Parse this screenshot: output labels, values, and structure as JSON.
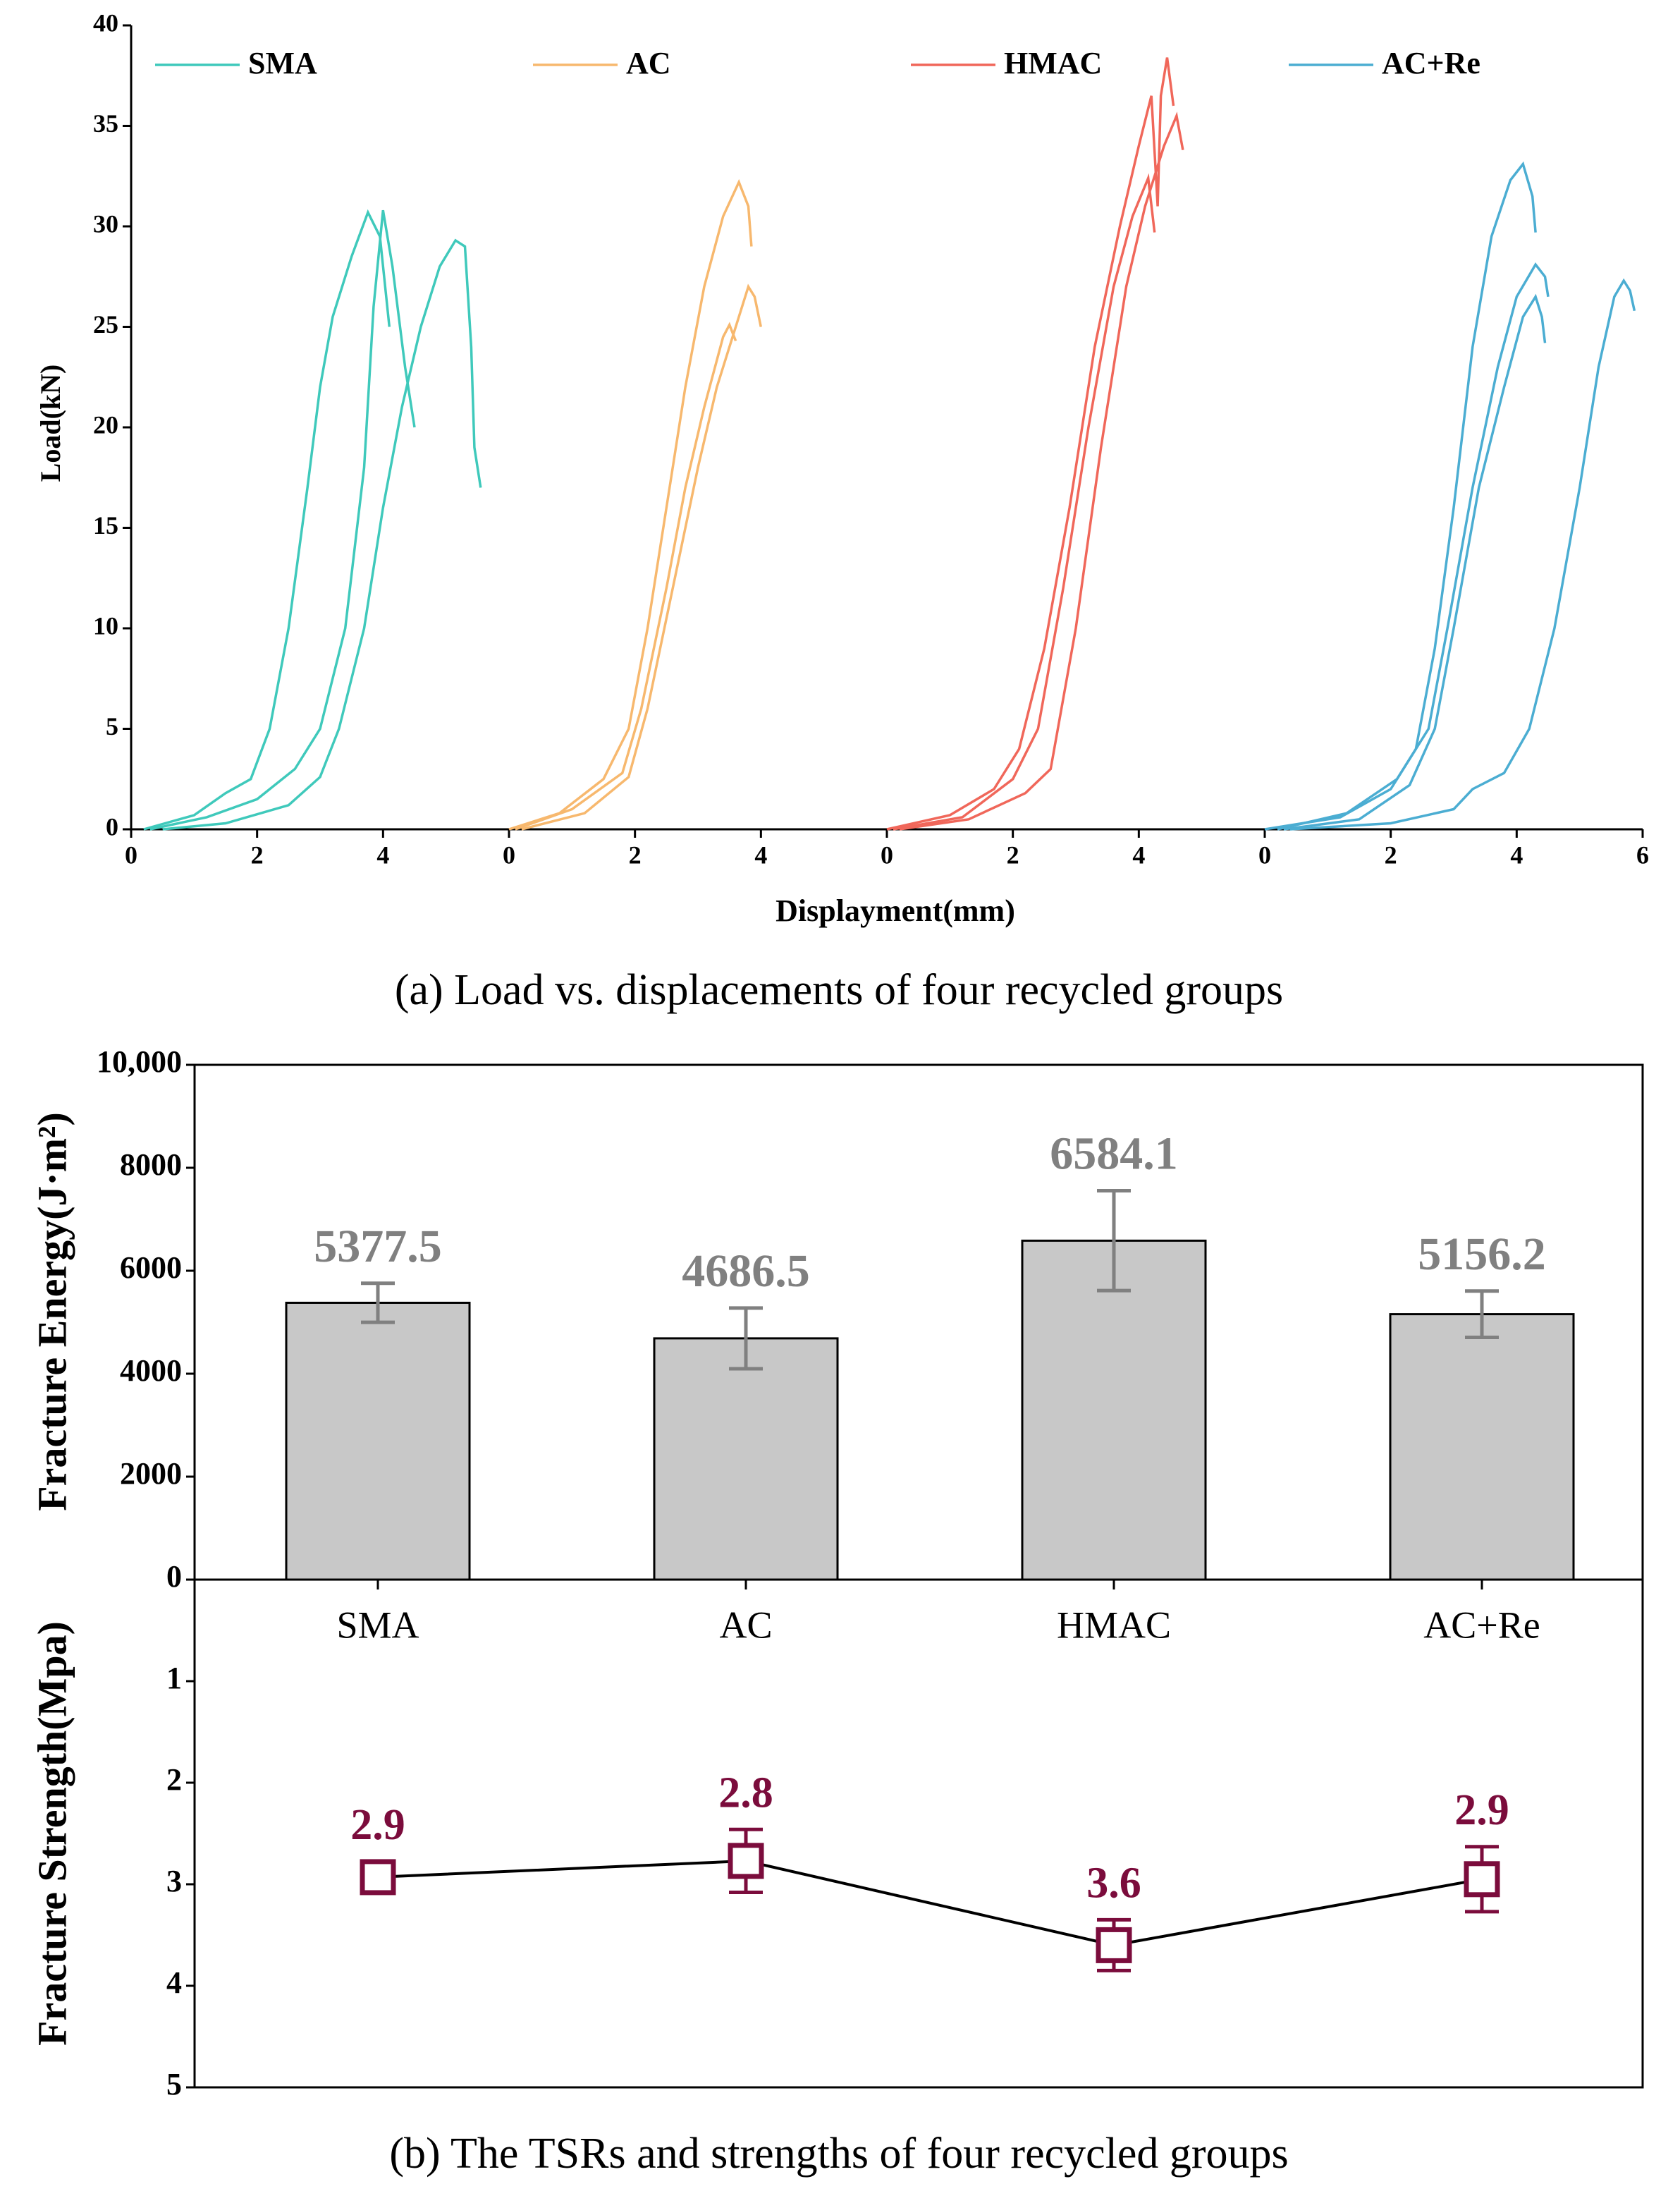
{
  "chart_data": [
    {
      "type": "line",
      "ylabel": "Load(kN)",
      "xlabel": "Displayment(mm)",
      "caption": "(a) Load vs. displacements of four recycled groups",
      "ylim": [
        0,
        40
      ],
      "yticks": [
        0,
        5,
        10,
        15,
        20,
        25,
        30,
        35,
        40
      ],
      "panels": [
        {
          "name": "SMA",
          "color": "#3fc9bb",
          "xlim": [
            0,
            6
          ],
          "xticks": [
            0,
            2,
            4
          ],
          "curves": [
            {
              "x": [
                0.2,
                1,
                1.5,
                1.9,
                2.2,
                2.5,
                2.8,
                3.0,
                3.2,
                3.5,
                3.76,
                3.95,
                4.1
              ],
              "y": [
                0,
                0.7,
                1.8,
                2.5,
                5,
                10,
                17,
                22,
                25.5,
                28.5,
                30.7,
                29.5,
                25
              ]
            },
            {
              "x": [
                0.3,
                1.2,
                2,
                2.6,
                3.0,
                3.4,
                3.7,
                3.85,
                4.0,
                4.15,
                4.35,
                4.5
              ],
              "y": [
                0,
                0.6,
                1.5,
                3,
                5,
                10,
                18,
                26,
                30.8,
                28,
                23,
                20
              ]
            },
            {
              "x": [
                0.5,
                1.5,
                2.5,
                3.0,
                3.3,
                3.7,
                4.0,
                4.3,
                4.6,
                4.9,
                5.15,
                5.3,
                5.4,
                5.45,
                5.55
              ],
              "y": [
                0,
                0.3,
                1.2,
                2.6,
                5,
                10,
                16,
                21,
                25,
                28,
                29.3,
                29,
                24,
                19,
                17
              ]
            }
          ]
        },
        {
          "name": "AC",
          "color": "#f7b86e",
          "xlim": [
            0,
            6
          ],
          "xticks": [
            0,
            2,
            4
          ],
          "curves": [
            {
              "x": [
                0,
                0.8,
                1.5,
                1.9,
                2.2,
                2.5,
                2.8,
                3.1,
                3.4,
                3.65,
                3.8,
                3.85
              ],
              "y": [
                0,
                0.8,
                2.5,
                5,
                10,
                16,
                22,
                27,
                30.5,
                32.2,
                31,
                29
              ]
            },
            {
              "x": [
                0.1,
                1,
                1.8,
                2.1,
                2.5,
                2.8,
                3.1,
                3.4,
                3.5,
                3.6
              ],
              "y": [
                0,
                1,
                2.8,
                6,
                12,
                17,
                21,
                24.5,
                25.1,
                24.3
              ]
            },
            {
              "x": [
                0.2,
                1.2,
                1.9,
                2.2,
                2.6,
                3.0,
                3.3,
                3.6,
                3.8,
                3.9,
                4.0
              ],
              "y": [
                0,
                0.8,
                2.6,
                6,
                12,
                18,
                22,
                25,
                27,
                26.5,
                25
              ]
            }
          ]
        },
        {
          "name": "HMAC",
          "color": "#f0675a",
          "xlim": [
            0,
            6
          ],
          "xticks": [
            0,
            2,
            4
          ],
          "curves": [
            {
              "x": [
                0,
                1,
                1.7,
                2.1,
                2.5,
                2.9,
                3.3,
                3.7,
                4.0,
                4.2,
                4.3,
                4.35,
                4.45,
                4.55
              ],
              "y": [
                0,
                0.7,
                2,
                4,
                9,
                16,
                24,
                30,
                34,
                36.5,
                31,
                36.5,
                38.4,
                36
              ]
            },
            {
              "x": [
                0.1,
                1.2,
                2,
                2.4,
                2.8,
                3.2,
                3.6,
                3.9,
                4.15,
                4.25
              ],
              "y": [
                0,
                0.6,
                2.5,
                5,
                12,
                20,
                27,
                30.5,
                32.4,
                29.7
              ]
            },
            {
              "x": [
                0.2,
                1.3,
                2.2,
                2.6,
                3.0,
                3.4,
                3.8,
                4.1,
                4.4,
                4.6,
                4.7
              ],
              "y": [
                0,
                0.5,
                1.8,
                3,
                10,
                19,
                27,
                31,
                34,
                35.5,
                33.8
              ]
            }
          ]
        },
        {
          "name": "AC+Re",
          "color": "#4badd2",
          "xlim": [
            0,
            6
          ],
          "xticks": [
            0,
            2,
            4,
            6
          ],
          "curves": [
            {
              "x": [
                0,
                1.2,
                2,
                2.4,
                2.7,
                3.0,
                3.3,
                3.6,
                3.9,
                4.1,
                4.25,
                4.3
              ],
              "y": [
                0,
                0.6,
                2,
                4,
                9,
                16,
                24,
                29.5,
                32.3,
                33.1,
                31.5,
                29.7
              ]
            },
            {
              "x": [
                0.2,
                1.3,
                2.1,
                2.6,
                2.9,
                3.3,
                3.7,
                4.0,
                4.3,
                4.45,
                4.5
              ],
              "y": [
                0,
                0.8,
                2.5,
                5,
                10,
                17,
                23,
                26.5,
                28.1,
                27.5,
                26.5
              ]
            },
            {
              "x": [
                0.3,
                1.5,
                2.3,
                2.7,
                3.0,
                3.4,
                3.8,
                4.1,
                4.3,
                4.4,
                4.45
              ],
              "y": [
                0,
                0.5,
                2.2,
                5,
                10,
                17,
                22,
                25.5,
                26.5,
                25.5,
                24.2
              ]
            },
            {
              "x": [
                0.4,
                2,
                3,
                3.3,
                3.8,
                4.2,
                4.6,
                5.0,
                5.3,
                5.55,
                5.7,
                5.8,
                5.87
              ],
              "y": [
                0,
                0.3,
                1,
                2,
                2.8,
                5,
                10,
                17,
                23,
                26.5,
                27.3,
                26.8,
                25.8
              ]
            }
          ]
        }
      ]
    },
    {
      "type": "bar",
      "ylabel": "Fracture Energy(J·m²)",
      "caption": "(b) The TSRs and strengths of four recycled groups",
      "categories": [
        "SMA",
        "AC",
        "HMAC",
        "AC+Re"
      ],
      "values": [
        5377.5,
        4686.5,
        6584.1,
        5156.2
      ],
      "errors": [
        380,
        590,
        970,
        450
      ],
      "color": "#c8c8c8",
      "error_color": "#808080",
      "ylim": [
        0,
        10000
      ],
      "yticks": [
        0,
        2000,
        4000,
        6000,
        8000,
        {
          "value": 10000,
          "label": "10,000"
        }
      ]
    },
    {
      "type": "line",
      "ylabel": "Fracture Strength(Mpa)",
      "values": [
        2.93,
        2.77,
        3.6,
        2.95
      ],
      "value_labels": [
        "2.9",
        "2.8",
        "3.6",
        "2.9"
      ],
      "errors": [
        0.05,
        0.31,
        0.25,
        0.32
      ],
      "color": "#000000",
      "marker_color": "#7b0c3c",
      "ylim": [
        0,
        5
      ],
      "yticks": [
        1,
        2,
        3,
        4,
        5
      ],
      "inverted": true
    }
  ]
}
